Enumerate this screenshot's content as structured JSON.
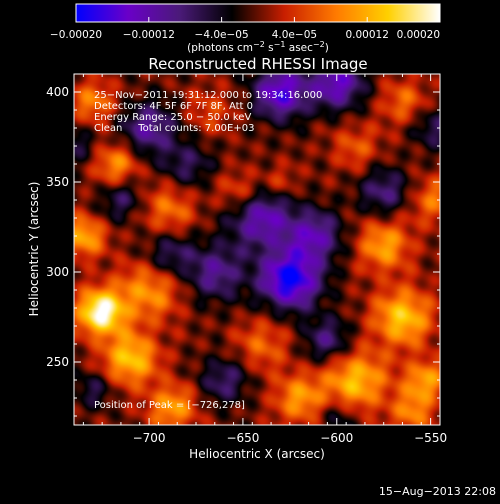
{
  "chart_data": {
    "type": "heatmap",
    "title": "Reconstructed RHESSI Image",
    "xlabel": "Heliocentric X (arcsec)",
    "ylabel": "Heliocentric Y (arcsec)",
    "xlim": [
      -740,
      -545
    ],
    "ylim": [
      215,
      410
    ],
    "xticks": [
      -700,
      -650,
      -600,
      -550
    ],
    "xtick_labels": [
      "−700",
      "−650",
      "−600",
      "−550"
    ],
    "yticks": [
      250,
      300,
      350,
      400
    ],
    "ytick_labels": [
      "250",
      "300",
      "350",
      "400"
    ],
    "colorbar": {
      "range": [
        -0.0002,
        0.0002
      ],
      "ticks": [
        -0.0002,
        -0.00012,
        -4e-05,
        4e-05,
        0.00012,
        0.0002
      ],
      "tick_labels": [
        "−0.00020",
        "−0.00012",
        "−4.0e−05",
        "4.0e−05",
        "0.00012",
        "0.00020"
      ],
      "units_prefix": "(photons cm",
      "units_sup1": "−2",
      "units_mid": " s",
      "units_sup2": "−1",
      "units_mid2": " asec",
      "units_sup3": "−2",
      "units_suffix": ")",
      "colors": [
        "#0000ff",
        "#6a00c8",
        "#4a1a78",
        "#000000",
        "#c81e00",
        "#ff7a00",
        "#ffd000",
        "#ffffff"
      ]
    },
    "info_lines": [
      "25−Nov−2011 19:31:12.000 to 19:34:16.000",
      "Detectors: 4F 5F 6F 7F 8F, Att 0",
      "Energy Range: 25.0 − 50.0 keV",
      "Clean     Total counts: 7.00E+03"
    ],
    "peak_label": "Position of Peak = [−726,278]",
    "peak": [
      -726,
      278
    ],
    "sources": [
      {
        "x": -726,
        "y": 278,
        "s": 9,
        "v": 1.0
      },
      {
        "x": -710,
        "y": 252,
        "s": 10,
        "v": 0.7
      },
      {
        "x": -735,
        "y": 320,
        "s": 8,
        "v": 0.6
      },
      {
        "x": -700,
        "y": 290,
        "s": 12,
        "v": 0.5
      },
      {
        "x": -718,
        "y": 360,
        "s": 8,
        "v": 0.5
      },
      {
        "x": -730,
        "y": 395,
        "s": 8,
        "v": 0.45
      },
      {
        "x": -688,
        "y": 225,
        "s": 9,
        "v": 0.55
      },
      {
        "x": -690,
        "y": 335,
        "s": 10,
        "v": 0.4
      },
      {
        "x": -565,
        "y": 275,
        "s": 11,
        "v": 0.7
      },
      {
        "x": -575,
        "y": 315,
        "s": 10,
        "v": 0.55
      },
      {
        "x": -590,
        "y": 240,
        "s": 12,
        "v": 0.65
      },
      {
        "x": -553,
        "y": 240,
        "s": 8,
        "v": 0.55
      },
      {
        "x": -548,
        "y": 340,
        "s": 9,
        "v": 0.4
      },
      {
        "x": -620,
        "y": 230,
        "s": 10,
        "v": 0.5
      },
      {
        "x": -640,
        "y": 260,
        "s": 10,
        "v": 0.35
      },
      {
        "x": -652,
        "y": 345,
        "s": 8,
        "v": 0.35
      },
      {
        "x": -590,
        "y": 370,
        "s": 9,
        "v": 0.3
      },
      {
        "x": -565,
        "y": 395,
        "s": 9,
        "v": 0.35
      },
      {
        "x": -668,
        "y": 390,
        "s": 9,
        "v": 0.25
      },
      {
        "x": -630,
        "y": 350,
        "s": 7,
        "v": 0.25
      },
      {
        "x": -560,
        "y": 222,
        "s": 8,
        "v": 0.45
      },
      {
        "x": -625,
        "y": 296,
        "s": 11,
        "v": -1.0
      },
      {
        "x": -640,
        "y": 330,
        "s": 12,
        "v": -0.65
      },
      {
        "x": -612,
        "y": 320,
        "s": 10,
        "v": -0.6
      },
      {
        "x": -630,
        "y": 400,
        "s": 10,
        "v": -0.8
      },
      {
        "x": -600,
        "y": 405,
        "s": 10,
        "v": -0.7
      },
      {
        "x": -700,
        "y": 380,
        "s": 10,
        "v": -0.55
      },
      {
        "x": -665,
        "y": 300,
        "s": 11,
        "v": -0.5
      },
      {
        "x": -690,
        "y": 310,
        "s": 9,
        "v": -0.4
      },
      {
        "x": -605,
        "y": 262,
        "s": 9,
        "v": -0.45
      },
      {
        "x": -660,
        "y": 240,
        "s": 9,
        "v": -0.4
      },
      {
        "x": -575,
        "y": 345,
        "s": 9,
        "v": -0.45
      },
      {
        "x": -730,
        "y": 235,
        "s": 7,
        "v": -0.3
      },
      {
        "x": -715,
        "y": 340,
        "s": 8,
        "v": -0.35
      },
      {
        "x": -680,
        "y": 360,
        "s": 9,
        "v": -0.35
      },
      {
        "x": -548,
        "y": 380,
        "s": 8,
        "v": -0.35
      },
      {
        "x": -600,
        "y": 220,
        "s": 7,
        "v": -0.3
      },
      {
        "x": -740,
        "y": 370,
        "s": 7,
        "v": -0.3
      }
    ]
  },
  "footer": {
    "date": "15−Aug−2013 22:08"
  }
}
